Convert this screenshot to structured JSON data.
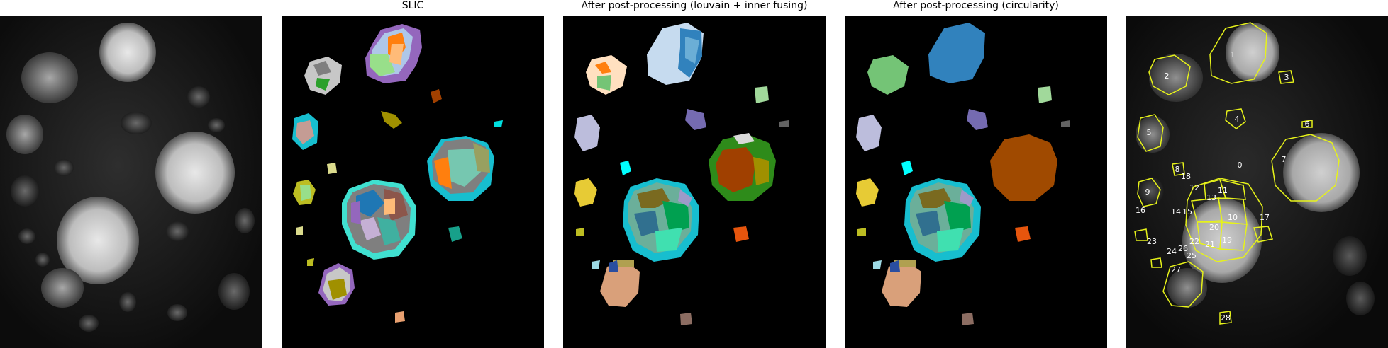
{
  "panels": [
    {
      "id": "raw",
      "title": ""
    },
    {
      "id": "slic",
      "title": "SLIC"
    },
    {
      "id": "louvain",
      "title": "After post-processing (louvain + inner fusing)"
    },
    {
      "id": "circularity",
      "title": "After post-processing (circularity)"
    },
    {
      "id": "overlay",
      "title": ""
    }
  ],
  "overlay_labels": [
    "0",
    "1",
    "2",
    "3",
    "4",
    "5",
    "6",
    "7",
    "8",
    "9",
    "10",
    "11",
    "12",
    "13",
    "14",
    "15",
    "16",
    "17",
    "18",
    "19",
    "20",
    "21",
    "22",
    "23",
    "24",
    "25",
    "26",
    "27",
    "28"
  ],
  "colors": {
    "background": "#000000",
    "contour": "#e6f21a",
    "segments": [
      "#1f77b4",
      "#aec7e8",
      "#ff7f0e",
      "#ffbb78",
      "#2ca02c",
      "#98df8a",
      "#d62728",
      "#9467bd",
      "#c5b0d5",
      "#8c564b",
      "#c49c94",
      "#e377c2",
      "#7f7f7f",
      "#c7c7c7",
      "#bcbd22",
      "#dbdb8d",
      "#17becf",
      "#9edae5",
      "#00a050",
      "#40e0b0",
      "#a04000",
      "#a09000"
    ]
  }
}
